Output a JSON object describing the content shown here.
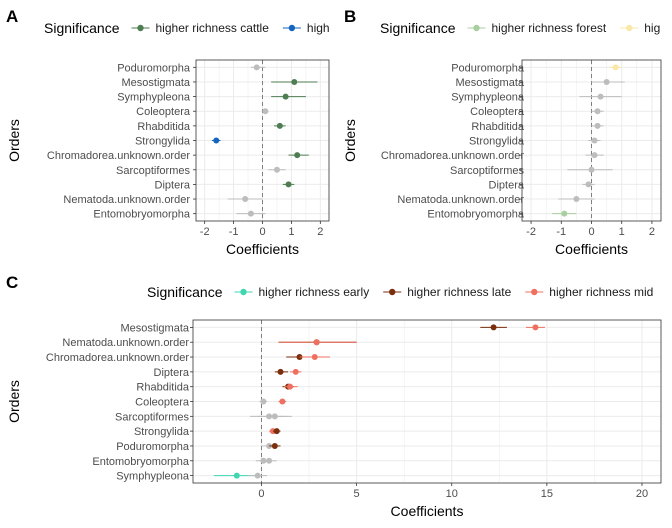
{
  "colors": {
    "grid": "#ebebeb",
    "panel_border": "#333333",
    "zero_line": "#7f7f7f",
    "not_significant": "#bdbdbd",
    "higher_richness_cattle": "#4e7d52",
    "high": "#1565c0",
    "higher_richness_forest": "#a8cf9f",
    "high_truncated": "#fbe8a8",
    "higher_richness_early": "#3fd6b0",
    "higher_richness_late": "#7a2e0c",
    "higher_richness_mid": "#f07060"
  },
  "chart_data": [
    {
      "panel_label": "A",
      "type": "scatter",
      "subtype": "dot-and-whisker",
      "legend_title": "Significance",
      "legend": [
        {
          "label": "higher richness cattle",
          "color_key": "higher_richness_cattle"
        },
        {
          "label": "high",
          "color_key": "high"
        }
      ],
      "xlabel": "Coefficients",
      "ylabel": "Orders",
      "xlim": [
        -2.3,
        2.3
      ],
      "xticks": [
        -2,
        -1,
        0,
        1,
        2
      ],
      "tick_labels": [
        "-2",
        "-1",
        "0",
        "1",
        "2"
      ],
      "grid": true,
      "zero_line": true,
      "categories": [
        "Poduromorpha",
        "Mesostigmata",
        "Symphypleona",
        "Coleoptera",
        "Rhabditida",
        "Strongylida",
        "Chromadorea.unknown.order",
        "Sarcoptiformes",
        "Diptera",
        "Nematoda.unknown.order",
        "Entomobryomorpha"
      ],
      "points": [
        {
          "order": "Poduromorpha",
          "value": -0.2,
          "low": -0.4,
          "high": 0.1,
          "group": "not_significant"
        },
        {
          "order": "Mesostigmata",
          "value": 1.1,
          "low": 0.3,
          "high": 1.9,
          "group": "higher_richness_cattle"
        },
        {
          "order": "Symphypleona",
          "value": 0.8,
          "low": 0.3,
          "high": 1.5,
          "group": "higher_richness_cattle"
        },
        {
          "order": "Coleoptera",
          "value": 0.1,
          "low": 0.0,
          "high": 0.2,
          "group": "not_significant"
        },
        {
          "order": "Rhabditida",
          "value": 0.6,
          "low": 0.4,
          "high": 0.8,
          "group": "higher_richness_cattle"
        },
        {
          "order": "Strongylida",
          "value": -1.6,
          "low": -1.75,
          "high": -1.45,
          "group": "high"
        },
        {
          "order": "Chromadorea.unknown.order",
          "value": 1.2,
          "low": 0.9,
          "high": 1.6,
          "group": "higher_richness_cattle"
        },
        {
          "order": "Sarcoptiformes",
          "value": 0.5,
          "low": 0.2,
          "high": 0.8,
          "group": "not_significant"
        },
        {
          "order": "Diptera",
          "value": 0.9,
          "low": 0.7,
          "high": 1.1,
          "group": "higher_richness_cattle"
        },
        {
          "order": "Nematoda.unknown.order",
          "value": -0.6,
          "low": -1.2,
          "high": 0.0,
          "group": "not_significant"
        },
        {
          "order": "Entomobryomorpha",
          "value": -0.4,
          "low": -0.9,
          "high": 0.1,
          "group": "not_significant"
        }
      ]
    },
    {
      "panel_label": "B",
      "type": "scatter",
      "subtype": "dot-and-whisker",
      "legend_title": "Significance",
      "legend": [
        {
          "label": "higher richness forest",
          "color_key": "higher_richness_forest"
        },
        {
          "label": "high",
          "color_key": "high_truncated"
        }
      ],
      "xlabel": "Coefficients",
      "ylabel": "Orders",
      "xlim": [
        -2.3,
        2.3
      ],
      "xticks": [
        -2,
        -1,
        0,
        1,
        2
      ],
      "tick_labels": [
        "-2",
        "-1",
        "0",
        "1",
        "2"
      ],
      "grid": true,
      "zero_line": true,
      "categories": [
        "Poduromorpha",
        "Mesostigmata",
        "Symphypleona",
        "Coleoptera",
        "Rhabditida",
        "Strongylida",
        "Chromadorea.unknown.order",
        "Sarcoptiformes",
        "Diptera",
        "Nematoda.unknown.order",
        "Entomobryomorpha"
      ],
      "points": [
        {
          "order": "Poduromorpha",
          "value": 0.8,
          "low": 0.6,
          "high": 1.0,
          "group": "high_truncated"
        },
        {
          "order": "Mesostigmata",
          "value": 0.5,
          "low": 0.0,
          "high": 1.1,
          "group": "not_significant"
        },
        {
          "order": "Symphypleona",
          "value": 0.3,
          "low": -0.4,
          "high": 1.0,
          "group": "not_significant"
        },
        {
          "order": "Coleoptera",
          "value": 0.2,
          "low": 0.0,
          "high": 0.4,
          "group": "not_significant"
        },
        {
          "order": "Rhabditida",
          "value": 0.2,
          "low": 0.0,
          "high": 0.4,
          "group": "not_significant"
        },
        {
          "order": "Strongylida",
          "value": 0.1,
          "low": -0.1,
          "high": 0.3,
          "group": "not_significant"
        },
        {
          "order": "Chromadorea.unknown.order",
          "value": 0.1,
          "low": -0.2,
          "high": 0.4,
          "group": "not_significant"
        },
        {
          "order": "Sarcoptiformes",
          "value": 0.0,
          "low": -0.8,
          "high": 0.7,
          "group": "not_significant"
        },
        {
          "order": "Diptera",
          "value": -0.1,
          "low": -0.3,
          "high": 0.1,
          "group": "not_significant"
        },
        {
          "order": "Nematoda.unknown.order",
          "value": -0.5,
          "low": -1.1,
          "high": 0.1,
          "group": "not_significant"
        },
        {
          "order": "Entomobryomorpha",
          "value": -0.9,
          "low": -1.3,
          "high": -0.5,
          "group": "higher_richness_forest"
        }
      ]
    },
    {
      "panel_label": "C",
      "type": "scatter",
      "subtype": "dot-and-whisker",
      "legend_title": "Significance",
      "legend": [
        {
          "label": "higher richness early",
          "color_key": "higher_richness_early"
        },
        {
          "label": "higher richness late",
          "color_key": "higher_richness_late"
        },
        {
          "label": "higher richness mid",
          "color_key": "higher_richness_mid"
        }
      ],
      "xlabel": "Coefficients",
      "ylabel": "Orders",
      "xlim": [
        -3.6,
        21.0
      ],
      "xticks": [
        0,
        5,
        10,
        15,
        20
      ],
      "tick_labels": [
        "0",
        "5",
        "10",
        "15",
        "20"
      ],
      "grid": true,
      "zero_line": true,
      "categories": [
        "Mesostigmata",
        "Nematoda.unknown.order",
        "Chromadorea.unknown.order",
        "Diptera",
        "Rhabditida",
        "Coleoptera",
        "Sarcoptiformes",
        "Strongylida",
        "Poduromorpha",
        "Entomobryomorpha",
        "Symphypleona"
      ],
      "points": [
        {
          "order": "Mesostigmata",
          "value": 12.2,
          "low": 11.5,
          "high": 12.9,
          "group": "higher_richness_late"
        },
        {
          "order": "Mesostigmata",
          "value": 14.4,
          "low": 13.9,
          "high": 14.9,
          "group": "higher_richness_mid"
        },
        {
          "order": "Nematoda.unknown.order",
          "value": 2.9,
          "low": 0.9,
          "high": 5.0,
          "group": "higher_richness_late"
        },
        {
          "order": "Nematoda.unknown.order",
          "value": 2.9,
          "low": 0.9,
          "high": 5.0,
          "group": "higher_richness_mid"
        },
        {
          "order": "Chromadorea.unknown.order",
          "value": 2.0,
          "low": 1.3,
          "high": 2.7,
          "group": "higher_richness_late"
        },
        {
          "order": "Chromadorea.unknown.order",
          "value": 2.8,
          "low": 2.0,
          "high": 3.6,
          "group": "higher_richness_mid"
        },
        {
          "order": "Diptera",
          "value": 1.0,
          "low": 0.7,
          "high": 1.4,
          "group": "higher_richness_late"
        },
        {
          "order": "Diptera",
          "value": 1.8,
          "low": 1.5,
          "high": 2.1,
          "group": "higher_richness_mid"
        },
        {
          "order": "Rhabditida",
          "value": 1.4,
          "low": 1.1,
          "high": 1.7,
          "group": "higher_richness_late"
        },
        {
          "order": "Rhabditida",
          "value": 1.5,
          "low": 1.2,
          "high": 1.9,
          "group": "higher_richness_mid"
        },
        {
          "order": "Coleoptera",
          "value": 0.1,
          "low": -0.1,
          "high": 0.3,
          "group": "not_significant"
        },
        {
          "order": "Coleoptera",
          "value": 1.1,
          "low": 0.9,
          "high": 1.3,
          "group": "higher_richness_mid"
        },
        {
          "order": "Sarcoptiformes",
          "value": 0.4,
          "low": -0.6,
          "high": 1.3,
          "group": "not_significant"
        },
        {
          "order": "Sarcoptiformes",
          "value": 0.7,
          "low": -0.2,
          "high": 1.6,
          "group": "not_significant"
        },
        {
          "order": "Strongylida",
          "value": 0.6,
          "low": 0.4,
          "high": 0.8,
          "group": "higher_richness_mid"
        },
        {
          "order": "Strongylida",
          "value": 0.8,
          "low": 0.6,
          "high": 1.0,
          "group": "higher_richness_late"
        },
        {
          "order": "Poduromorpha",
          "value": 0.4,
          "low": 0.0,
          "high": 0.8,
          "group": "not_significant"
        },
        {
          "order": "Poduromorpha",
          "value": 0.7,
          "low": 0.4,
          "high": 1.0,
          "group": "higher_richness_late"
        },
        {
          "order": "Entomobryomorpha",
          "value": 0.1,
          "low": -0.3,
          "high": 0.5,
          "group": "not_significant"
        },
        {
          "order": "Entomobryomorpha",
          "value": 0.4,
          "low": 0.0,
          "high": 0.8,
          "group": "not_significant"
        },
        {
          "order": "Symphypleona",
          "value": -1.3,
          "low": -2.5,
          "high": -0.1,
          "group": "higher_richness_early"
        },
        {
          "order": "Symphypleona",
          "value": -0.2,
          "low": -0.7,
          "high": 0.3,
          "group": "not_significant"
        }
      ]
    }
  ]
}
